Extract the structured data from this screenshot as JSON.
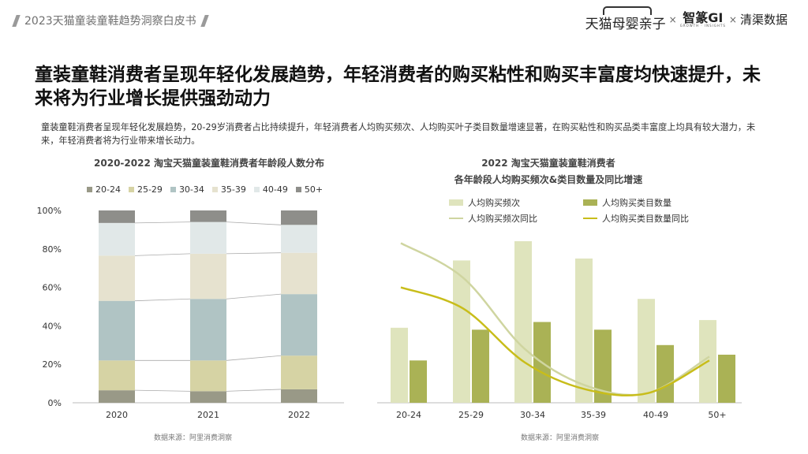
{
  "header": {
    "title": "2023天猫童装童鞋趋势洞察白皮书"
  },
  "logos": {
    "tmall": "天猫母婴亲子",
    "x1": "×",
    "gi": "智篆GI",
    "gi_sub": "GROWTH · INSIGHTS",
    "x2": "×",
    "qingqu": "清渠数据"
  },
  "main_title": "童装童鞋消费者呈现年轻化发展趋势，年轻消费者的购买粘性和购买丰富度均快速提升，未来将为行业增长提供强劲动力",
  "description": "童装童鞋消费者呈现年轻化发展趋势，20-29岁消费者占比持续提升，年轻消费者人均购买频次、人均购买叶子类目数量增速显著，在购买粘性和购买品类丰富度上均具有较大潜力，未来，年轻消费者将为行业带来增长动力。",
  "colors": {
    "age_segments": [
      "#999987",
      "#d6d3a4",
      "#b0c4c4",
      "#e6e2cf",
      "#e1e8e8",
      "#8e8e8a"
    ],
    "freq_bar": "#dfe4bd",
    "cat_bar": "#aab255",
    "freq_line": "#cfd5a0",
    "cat_line": "#c8bd1a"
  },
  "chart_data": [
    {
      "type": "bar",
      "stacked": true,
      "title": "2020-2022 淘宝天猫童装童鞋消费者年龄段人数分布",
      "categories": [
        "2020",
        "2021",
        "2022"
      ],
      "series": [
        {
          "name": "20-24",
          "values": [
            6.5,
            6,
            7
          ]
        },
        {
          "name": "25-29",
          "values": [
            15.5,
            16,
            17.5
          ]
        },
        {
          "name": "30-34",
          "values": [
            31,
            32,
            32
          ]
        },
        {
          "name": "35-39",
          "values": [
            23.5,
            23.5,
            21.5
          ]
        },
        {
          "name": "40-49",
          "values": [
            17,
            16.5,
            14.5
          ]
        },
        {
          "name": "50+",
          "values": [
            6.5,
            6,
            7.5
          ]
        }
      ],
      "y_ticks": [
        "0%",
        "20%",
        "40%",
        "60%",
        "80%",
        "100%"
      ],
      "ylim": [
        0,
        100
      ],
      "legend_position": "top",
      "source": "数据来源：阿里消费洞察"
    },
    {
      "type": "bar",
      "title_line1": "2022 淘宝天猫童装童鞋消费者",
      "title_line2": "各年龄段人均购买频次&类目数量及同比增速",
      "categories": [
        "20-24",
        "25-29",
        "30-34",
        "35-39",
        "40-49",
        "50+"
      ],
      "series": [
        {
          "name": "人均购买频次",
          "kind": "bar",
          "values": [
            39,
            74,
            84,
            75,
            54,
            43
          ]
        },
        {
          "name": "人均购买类目数量",
          "kind": "bar",
          "values": [
            22,
            38,
            42,
            38,
            30,
            25
          ]
        },
        {
          "name": "人均购买频次同比",
          "kind": "line",
          "values": [
            83,
            65,
            28,
            9,
            5,
            24
          ]
        },
        {
          "name": "人均购买类目数量同比",
          "kind": "line",
          "values": [
            60,
            49,
            21,
            7,
            5,
            22
          ]
        }
      ],
      "ylim": [
        0,
        100
      ],
      "grid": false,
      "legend_position": "top",
      "source": "数据来源：阿里消费洞察"
    }
  ]
}
